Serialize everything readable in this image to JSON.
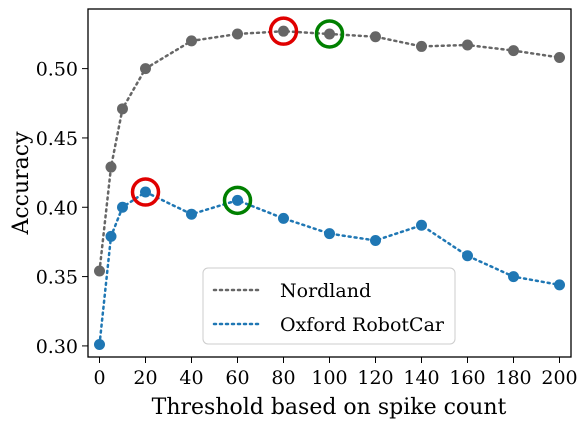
{
  "chart_data": {
    "type": "line",
    "title": "",
    "xlabel": "Threshold based on spike count",
    "ylabel": "Accuracy",
    "xlim": [
      -5,
      205
    ],
    "ylim": [
      0.292,
      0.543
    ],
    "xticks": [
      0,
      20,
      40,
      60,
      80,
      100,
      120,
      140,
      160,
      180,
      200
    ],
    "xtick_labels": [
      "0",
      "20",
      "40",
      "60",
      "80",
      "100",
      "120",
      "140",
      "160",
      "180",
      "200"
    ],
    "yticks": [
      0.3,
      0.35,
      0.4,
      0.45,
      0.5
    ],
    "ytick_labels": [
      "0.30",
      "0.35",
      "0.40",
      "0.45",
      "0.50"
    ],
    "grid": false,
    "legend_position": "lower-center",
    "x": [
      0,
      5,
      10,
      20,
      40,
      60,
      80,
      100,
      120,
      140,
      160,
      180,
      200
    ],
    "series": [
      {
        "name": "Nordland",
        "color": "#666666",
        "values": [
          0.354,
          0.429,
          0.471,
          0.5,
          0.52,
          0.525,
          0.527,
          0.525,
          0.523,
          0.516,
          0.517,
          0.513,
          0.508
        ]
      },
      {
        "name": "Oxford RobotCar",
        "color": "#1f77b4",
        "values": [
          0.301,
          0.379,
          0.4,
          0.411,
          0.395,
          0.405,
          0.392,
          0.381,
          0.376,
          0.387,
          0.365,
          0.35,
          0.344
        ]
      }
    ],
    "highlights": [
      {
        "series": "Nordland",
        "x": 80,
        "y": 0.527,
        "color": "#e00000"
      },
      {
        "series": "Nordland",
        "x": 100,
        "y": 0.525,
        "color": "#008000"
      },
      {
        "series": "Oxford RobotCar",
        "x": 20,
        "y": 0.411,
        "color": "#e00000"
      },
      {
        "series": "Oxford RobotCar",
        "x": 60,
        "y": 0.405,
        "color": "#008000"
      }
    ]
  }
}
